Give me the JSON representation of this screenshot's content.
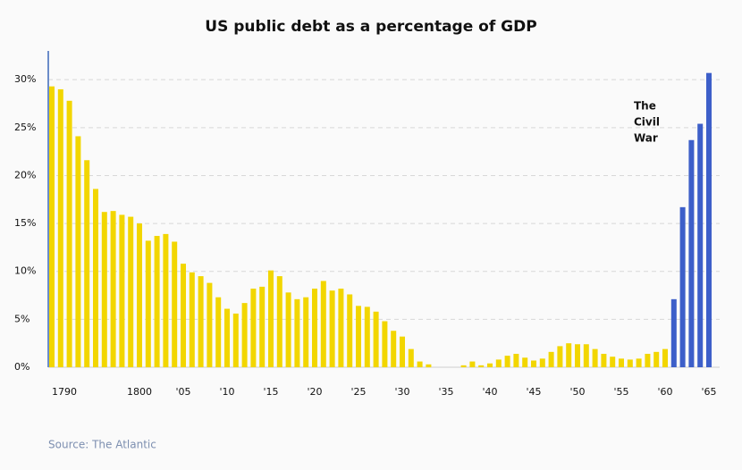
{
  "chart_data": {
    "type": "bar",
    "title": "US public debt as a percentage of GDP",
    "source": "Source: The Atlantic",
    "annotation": [
      "The",
      "Civil",
      "War"
    ],
    "categories": [
      "1790",
      null,
      null,
      null,
      null,
      null,
      null,
      null,
      null,
      null,
      "1800",
      null,
      null,
      null,
      null,
      "'05",
      null,
      null,
      null,
      null,
      "'10",
      null,
      null,
      null,
      null,
      "'15",
      null,
      null,
      null,
      null,
      "'20",
      null,
      null,
      null,
      null,
      "'25",
      null,
      null,
      null,
      null,
      "'30",
      null,
      null,
      null,
      null,
      "'35",
      null,
      null,
      null,
      null,
      "'40",
      null,
      null,
      null,
      null,
      "'45",
      null,
      null,
      null,
      null,
      "'50",
      null,
      null,
      null,
      null,
      "'55",
      null,
      null,
      null,
      null,
      "'60",
      null,
      null,
      null,
      null,
      "'65"
    ],
    "values": [
      29.3,
      29.0,
      27.8,
      24.1,
      21.6,
      18.6,
      16.2,
      16.3,
      15.9,
      15.7,
      15.0,
      13.2,
      13.7,
      13.9,
      13.1,
      10.8,
      9.9,
      9.5,
      8.8,
      7.3,
      6.1,
      5.6,
      6.7,
      8.2,
      8.4,
      10.1,
      9.5,
      7.8,
      7.1,
      7.3,
      8.2,
      9.0,
      8.0,
      8.2,
      7.6,
      6.4,
      6.3,
      5.8,
      4.8,
      3.8,
      3.2,
      1.9,
      0.6,
      0.3,
      0,
      0,
      0,
      0.2,
      0.6,
      0.2,
      0.4,
      0.8,
      1.2,
      1.4,
      1.0,
      0.7,
      0.9,
      1.6,
      2.2,
      2.5,
      2.4,
      2.4,
      1.9,
      1.4,
      1.1,
      0.9,
      0.8,
      0.9,
      1.4,
      1.6,
      1.9,
      7.1,
      16.7,
      23.7,
      25.4,
      30.7
    ],
    "colors": [
      "#f2d600",
      "#f2d600",
      "#f2d600",
      "#f2d600",
      "#f2d600",
      "#f2d600",
      "#f2d600",
      "#f2d600",
      "#f2d600",
      "#f2d600",
      "#f2d600",
      "#f2d600",
      "#f2d600",
      "#f2d600",
      "#f2d600",
      "#f2d600",
      "#f2d600",
      "#f2d600",
      "#f2d600",
      "#f2d600",
      "#f2d600",
      "#f2d600",
      "#f2d600",
      "#f2d600",
      "#f2d600",
      "#f2d600",
      "#f2d600",
      "#f2d600",
      "#f2d600",
      "#f2d600",
      "#f2d600",
      "#f2d600",
      "#f2d600",
      "#f2d600",
      "#f2d600",
      "#f2d600",
      "#f2d600",
      "#f2d600",
      "#f2d600",
      "#f2d600",
      "#f2d600",
      "#f2d600",
      "#f2d600",
      "#f2d600",
      "#f2d600",
      "#f2d600",
      "#f2d600",
      "#f2d600",
      "#f2d600",
      "#f2d600",
      "#f2d600",
      "#f2d600",
      "#f2d600",
      "#f2d600",
      "#f2d600",
      "#f2d600",
      "#f2d600",
      "#f2d600",
      "#f2d600",
      "#f2d600",
      "#f2d600",
      "#f2d600",
      "#f2d600",
      "#f2d600",
      "#f2d600",
      "#f2d600",
      "#f2d600",
      "#f2d600",
      "#f2d600",
      "#f2d600",
      "#f2d600",
      "#3d5fc9",
      "#3d5fc9",
      "#3d5fc9",
      "#3d5fc9",
      "#3d5fc9"
    ],
    "ylim": [
      0,
      33
    ],
    "yticks": [
      {
        "value": 0,
        "label": "0%"
      },
      {
        "value": 5,
        "label": "5%"
      },
      {
        "value": 10,
        "label": "10%"
      },
      {
        "value": 15,
        "label": "15%"
      },
      {
        "value": 20,
        "label": "20%"
      },
      {
        "value": 25,
        "label": "25%"
      },
      {
        "value": 30,
        "label": "30%"
      }
    ],
    "grid": true
  }
}
